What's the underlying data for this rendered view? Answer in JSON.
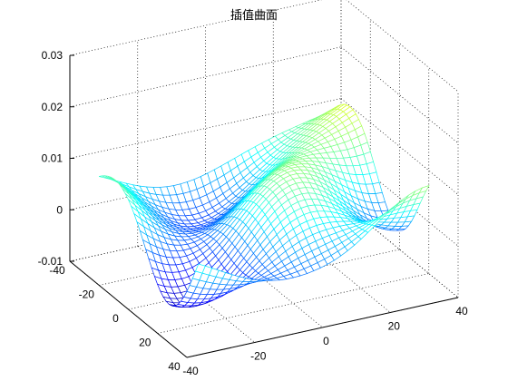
{
  "chart_data": {
    "type": "surface-mesh-3d",
    "title": "插值曲面",
    "xlabel": "",
    "ylabel": "",
    "zlabel": "",
    "xlim": [
      -40,
      40
    ],
    "ylim": [
      -40,
      40
    ],
    "zlim": [
      -0.01,
      0.03
    ],
    "x_ticks": [
      "-40",
      "-20",
      "0",
      "20",
      "40"
    ],
    "y_ticks": [
      "-40",
      "-20",
      "0",
      "20",
      "40"
    ],
    "z_ticks": [
      "-0.01",
      "0",
      "0.01",
      "0.02",
      "0.03"
    ],
    "grid": true,
    "colormap": "jet",
    "colors": {
      "low": "#0000c8",
      "high": "#c80000",
      "axes": "#000000"
    }
  }
}
